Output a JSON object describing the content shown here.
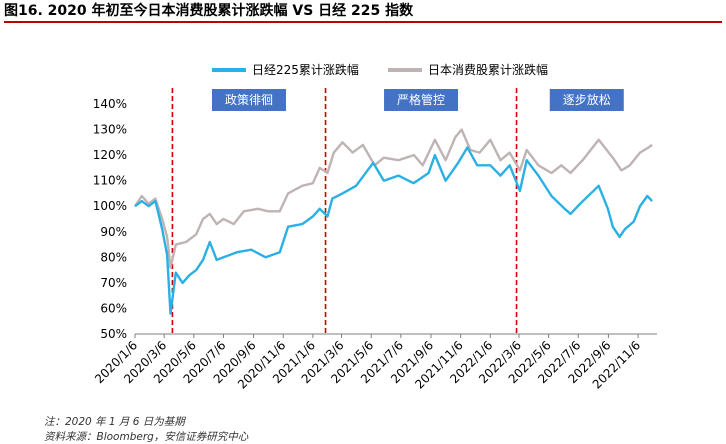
{
  "figure": {
    "title": "图16. 2020 年初至今日本消费股累计涨跌幅 VS 日经 225 指数",
    "note": "注：2020 年 1 月 6 日为基期",
    "source": "资料来源：Bloomberg，安信证券研究中心"
  },
  "chart_data": {
    "type": "line",
    "title": "",
    "xlabel": "",
    "ylabel": "",
    "ylim": [
      50,
      140
    ],
    "yticks": [
      "50%",
      "60%",
      "70%",
      "80%",
      "90%",
      "100%",
      "110%",
      "120%",
      "130%",
      "140%"
    ],
    "grid": false,
    "legend_position": "top",
    "x_ticks": [
      "2020/1/6",
      "2020/3/6",
      "2020/5/6",
      "2020/7/6",
      "2020/9/6",
      "2020/11/6",
      "2021/1/6",
      "2021/3/6",
      "2021/5/6",
      "2021/7/6",
      "2021/9/6",
      "2021/11/6",
      "2022/1/6",
      "2022/3/6",
      "2022/5/6",
      "2022/7/6",
      "2022/9/6",
      "2022/11/6"
    ],
    "colors": {
      "nikkei": "#2ab0e4",
      "consumer": "#bfb4b4",
      "divider": "#cc0000",
      "box": "#4472c4",
      "axis": "#7f7f7f"
    },
    "periods": [
      {
        "label": "政策徘徊",
        "start": "2020/3/23",
        "end": "2021/2/1"
      },
      {
        "label": "严格管控",
        "start": "2021/2/1",
        "end": "2022/3/1"
      },
      {
        "label": "逐步放松",
        "start": "2022/3/1",
        "end": "2022/12/15"
      }
    ],
    "series": [
      {
        "name": "日经225累计涨跌幅",
        "key": "nikkei",
        "points": [
          [
            "2020/1/6",
            100
          ],
          [
            "2020/1/20",
            102
          ],
          [
            "2020/2/3",
            100
          ],
          [
            "2020/2/17",
            102
          ],
          [
            "2020/3/2",
            91
          ],
          [
            "2020/3/12",
            81
          ],
          [
            "2020/3/19",
            58
          ],
          [
            "2020/3/30",
            74
          ],
          [
            "2020/4/13",
            70
          ],
          [
            "2020/4/27",
            73
          ],
          [
            "2020/5/11",
            75
          ],
          [
            "2020/5/25",
            79
          ],
          [
            "2020/6/8",
            86
          ],
          [
            "2020/6/22",
            79
          ],
          [
            "2020/7/6",
            80
          ],
          [
            "2020/8/3",
            82
          ],
          [
            "2020/9/1",
            83
          ],
          [
            "2020/10/1",
            80
          ],
          [
            "2020/10/30",
            82
          ],
          [
            "2020/11/16",
            92
          ],
          [
            "2020/12/15",
            93
          ],
          [
            "2021/1/6",
            96
          ],
          [
            "2021/1/20",
            99
          ],
          [
            "2021/2/5",
            96
          ],
          [
            "2021/2/15",
            103
          ],
          [
            "2021/3/8",
            105
          ],
          [
            "2021/4/5",
            108
          ],
          [
            "2021/5/10",
            117
          ],
          [
            "2021/6/1",
            110
          ],
          [
            "2021/7/1",
            112
          ],
          [
            "2021/8/1",
            109
          ],
          [
            "2021/9/1",
            113
          ],
          [
            "2021/9/14",
            120
          ],
          [
            "2021/10/6",
            110
          ],
          [
            "2021/11/1",
            117
          ],
          [
            "2021/11/20",
            123
          ],
          [
            "2021/12/10",
            116
          ],
          [
            "2022/1/6",
            116
          ],
          [
            "2022/1/27",
            112
          ],
          [
            "2022/2/15",
            116
          ],
          [
            "2022/3/8",
            106
          ],
          [
            "2022/3/22",
            118
          ],
          [
            "2022/4/15",
            112
          ],
          [
            "2022/5/12",
            104
          ],
          [
            "2022/6/8",
            99
          ],
          [
            "2022/6/20",
            97
          ],
          [
            "2022/7/10",
            101
          ],
          [
            "2022/8/17",
            108
          ],
          [
            "2022/9/5",
            99
          ],
          [
            "2022/9/15",
            92
          ],
          [
            "2022/9/29",
            88
          ],
          [
            "2022/10/10",
            91
          ],
          [
            "2022/10/28",
            94
          ],
          [
            "2022/11/10",
            100
          ],
          [
            "2022/11/25",
            104
          ],
          [
            "2022/12/5",
            102
          ]
        ]
      },
      {
        "name": "日本消费股累计涨跌幅",
        "key": "consumer",
        "points": [
          [
            "2020/1/6",
            100
          ],
          [
            "2020/1/20",
            104
          ],
          [
            "2020/2/3",
            101
          ],
          [
            "2020/2/17",
            103
          ],
          [
            "2020/3/2",
            95
          ],
          [
            "2020/3/12",
            88
          ],
          [
            "2020/3/19",
            76
          ],
          [
            "2020/3/30",
            85
          ],
          [
            "2020/4/20",
            86
          ],
          [
            "2020/5/11",
            89
          ],
          [
            "2020/5/25",
            95
          ],
          [
            "2020/6/8",
            97
          ],
          [
            "2020/6/22",
            93
          ],
          [
            "2020/7/6",
            95
          ],
          [
            "2020/7/27",
            93
          ],
          [
            "2020/8/17",
            98
          ],
          [
            "2020/9/15",
            99
          ],
          [
            "2020/10/6",
            98
          ],
          [
            "2020/10/30",
            98
          ],
          [
            "2020/11/16",
            105
          ],
          [
            "2020/12/15",
            108
          ],
          [
            "2021/1/6",
            109
          ],
          [
            "2021/1/20",
            115
          ],
          [
            "2021/2/5",
            113
          ],
          [
            "2021/2/18",
            121
          ],
          [
            "2021/3/8",
            125
          ],
          [
            "2021/3/29",
            121
          ],
          [
            "2021/4/19",
            124
          ],
          [
            "2021/5/13",
            116
          ],
          [
            "2021/6/1",
            119
          ],
          [
            "2021/7/1",
            118
          ],
          [
            "2021/8/2",
            120
          ],
          [
            "2021/8/20",
            116
          ],
          [
            "2021/9/14",
            126
          ],
          [
            "2021/10/6",
            118
          ],
          [
            "2021/10/26",
            127
          ],
          [
            "2021/11/8",
            130
          ],
          [
            "2021/11/26",
            122
          ],
          [
            "2021/12/15",
            121
          ],
          [
            "2022/1/6",
            126
          ],
          [
            "2022/1/27",
            118
          ],
          [
            "2022/2/15",
            121
          ],
          [
            "2022/3/8",
            114
          ],
          [
            "2022/3/22",
            122
          ],
          [
            "2022/4/15",
            116
          ],
          [
            "2022/5/12",
            113
          ],
          [
            "2022/6/1",
            116
          ],
          [
            "2022/6/20",
            113
          ],
          [
            "2022/7/15",
            118
          ],
          [
            "2022/8/17",
            126
          ],
          [
            "2022/9/15",
            119
          ],
          [
            "2022/10/3",
            114
          ],
          [
            "2022/10/20",
            116
          ],
          [
            "2022/11/10",
            121
          ],
          [
            "2022/11/28",
            123
          ],
          [
            "2022/12/5",
            124
          ]
        ]
      }
    ]
  }
}
